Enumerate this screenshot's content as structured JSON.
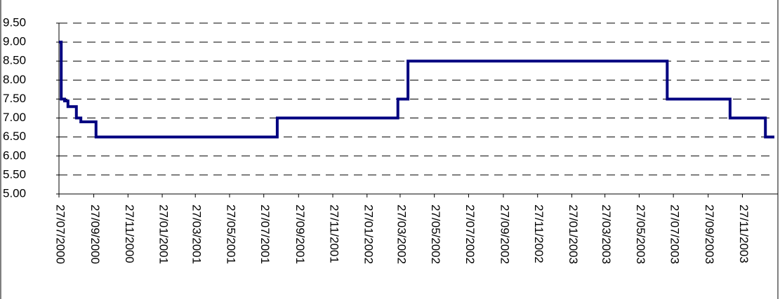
{
  "chart_data": {
    "type": "line",
    "step": "post",
    "color": "#000080",
    "grid": true,
    "x": [
      "27/07/2000",
      "31/07/2000",
      "06/08/2000",
      "12/08/2000",
      "27/08/2000",
      "04/09/2000",
      "01/10/2000",
      "20/08/2001",
      "23/03/2002",
      "10/04/2002",
      "16/07/2003",
      "05/11/2003",
      "07/01/2004",
      "23/01/2004"
    ],
    "values": [
      9.0,
      7.5,
      7.45,
      7.3,
      7.0,
      6.9,
      6.5,
      7.0,
      7.5,
      8.5,
      7.5,
      7.0,
      6.5,
      6.5
    ],
    "xlim": [
      "27/07/2000",
      "23/01/2004"
    ],
    "xticks": [
      "27/07/2000",
      "27/09/2000",
      "27/11/2000",
      "27/01/2001",
      "27/03/2001",
      "27/05/2001",
      "27/07/2001",
      "27/09/2001",
      "27/11/2001",
      "27/01/2002",
      "27/03/2002",
      "27/05/2002",
      "27/07/2002",
      "27/09/2002",
      "27/11/2002",
      "27/01/2003",
      "27/03/2003",
      "27/05/2003",
      "27/07/2003",
      "27/09/2003",
      "27/11/2003"
    ],
    "ylim": [
      5,
      9.5
    ],
    "yticks": [
      {
        "value": 5,
        "label": "5.00"
      },
      {
        "value": 5.5,
        "label": "5.50"
      },
      {
        "value": 6,
        "label": "6.00"
      },
      {
        "value": 6.5,
        "label": "6.50"
      },
      {
        "value": 7,
        "label": "7.00"
      },
      {
        "value": 7.5,
        "label": "7.50"
      },
      {
        "value": 8,
        "label": "8.00"
      },
      {
        "value": 8.5,
        "label": "8.50"
      },
      {
        "value": 9,
        "label": "9.00"
      },
      {
        "value": 9.5,
        "label": "9.50"
      }
    ]
  }
}
